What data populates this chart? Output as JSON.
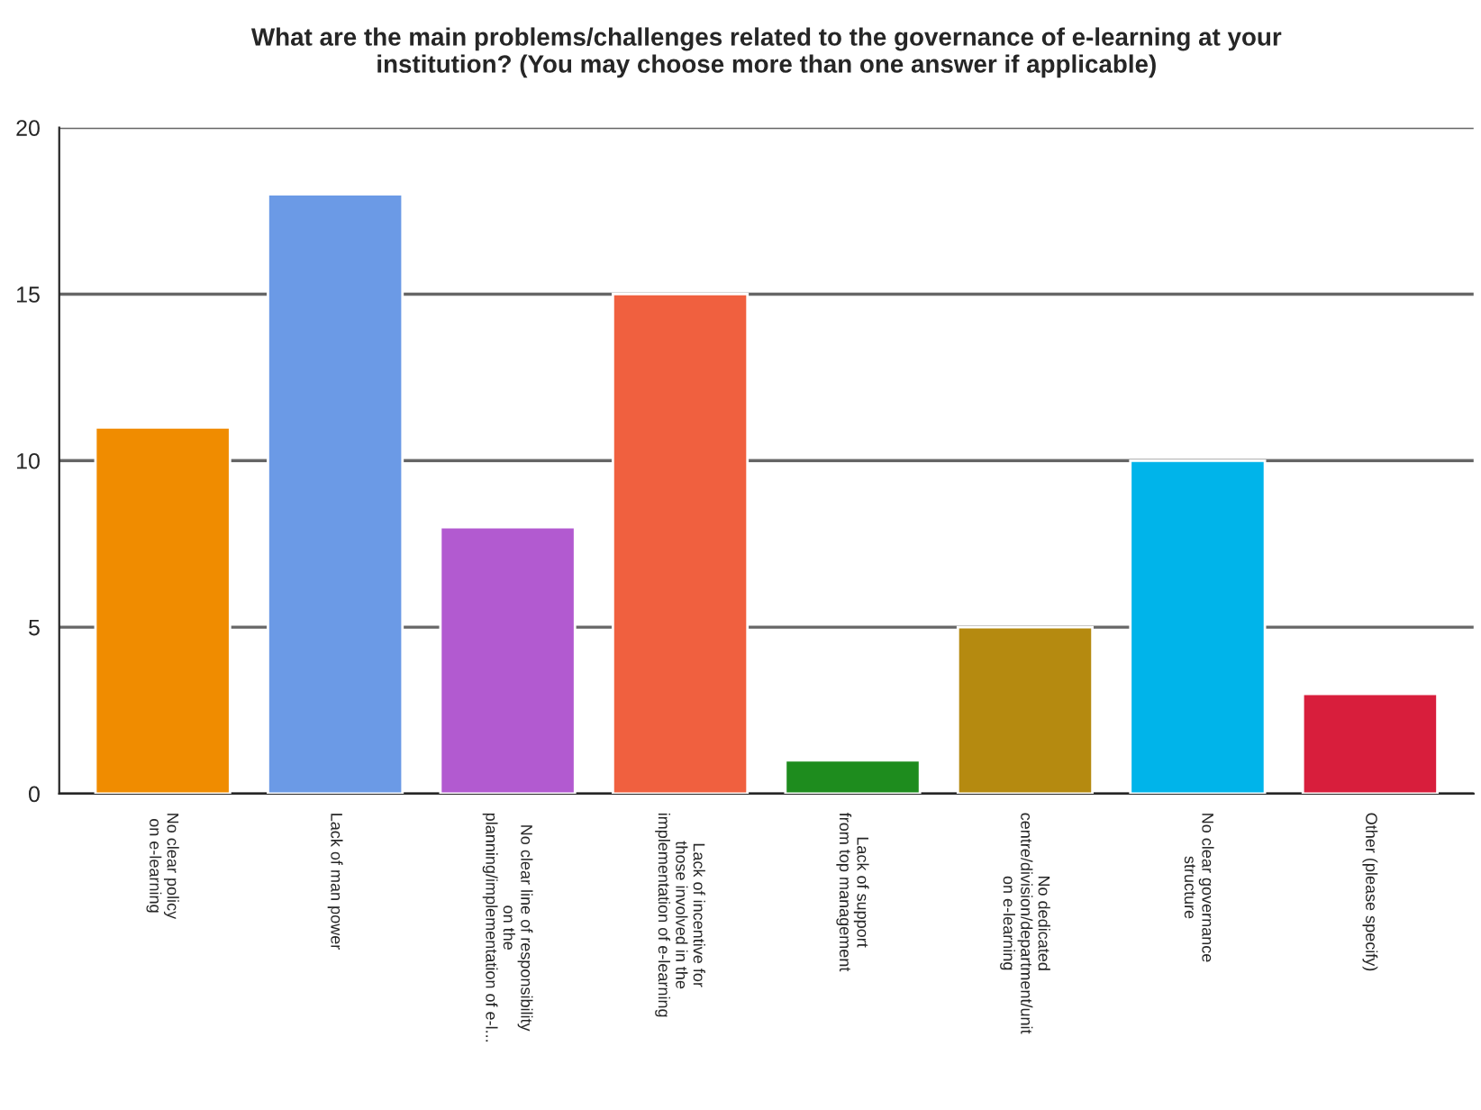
{
  "chart_data": {
    "type": "bar",
    "title": "What are the main problems/challenges related to the governance of e-learning at your\ninstitution? (You may choose more than one answer if applicable)",
    "categories": [
      "No clear policy\non e-learning",
      "Lack of man power",
      "No clear line of responsibility\non the\nplanning/implementation of e-l...",
      "Lack of incentive for\nthose involved in the\nimplementation of e-learning",
      "Lack of support\nfrom top management",
      "No dedicated\ncentre/division/department/unit\non e-learning",
      "No clear governance\nstructure",
      "Other (please specify)"
    ],
    "values": [
      11,
      18,
      8,
      15,
      1,
      5,
      10,
      3
    ],
    "colors": [
      "#f08c00",
      "#6b9ae6",
      "#b25ad0",
      "#f0603f",
      "#1e8c1e",
      "#b58a10",
      "#00b4ea",
      "#d81e3c"
    ],
    "ylim": [
      0,
      20
    ],
    "yticks": [
      0,
      5,
      10,
      15,
      20
    ],
    "grid": "y"
  }
}
